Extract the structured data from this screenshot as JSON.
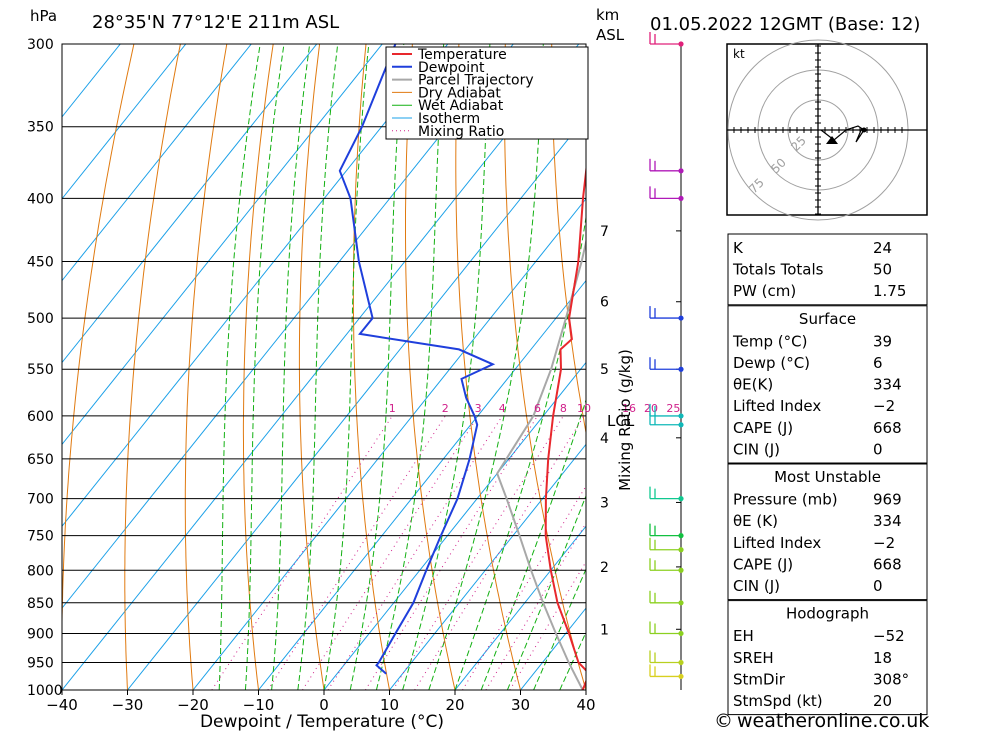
{
  "header": {
    "hpa_label": "hPa",
    "location": "28°35'N  77°12'E  211m  ASL",
    "km_label": "km",
    "asl_label": "ASL",
    "datetime": "01.05.2022  12GMT  (Base: 12)"
  },
  "xaxis": {
    "label": "Dewpoint / Temperature (°C)",
    "ticks": [
      "−40",
      "−30",
      "−20",
      "−10",
      "0",
      "10",
      "20",
      "30",
      "40"
    ],
    "values": [
      -40,
      -30,
      -20,
      -10,
      0,
      10,
      20,
      30,
      40
    ]
  },
  "mixing_ratio_label": "Mixing Ratio (g/kg)",
  "lcl_label": "LCL",
  "pressure_ticks": [
    300,
    350,
    400,
    450,
    500,
    550,
    600,
    650,
    700,
    750,
    800,
    850,
    900,
    950,
    1000
  ],
  "km_ticks": [
    {
      "km": "1",
      "p": 893
    },
    {
      "km": "2",
      "p": 795
    },
    {
      "km": "3",
      "p": 705
    },
    {
      "km": "4",
      "p": 625
    },
    {
      "km": "5",
      "p": 550
    },
    {
      "km": "6",
      "p": 485
    },
    {
      "km": "7",
      "p": 425
    }
  ],
  "mixing_ratio_values": [
    "1",
    "2",
    "3",
    "4",
    "6",
    "8",
    "10",
    "16",
    "20",
    "25"
  ],
  "colors": {
    "temperature": "#e8282d",
    "dewpoint": "#1f3fdc",
    "parcel": "#a8a8a8",
    "dry_adiabat": "#e07a10",
    "wet_adiabat": "#12b012",
    "isotherm": "#1aa0e8",
    "mixing_ratio": "#d0208a"
  },
  "legend": [
    {
      "label": "Temperature",
      "key": "temperature",
      "style": "solid"
    },
    {
      "label": "Dewpoint",
      "key": "dewpoint",
      "style": "solid"
    },
    {
      "label": "Parcel Trajectory",
      "key": "parcel",
      "style": "solid"
    },
    {
      "label": "Dry Adiabat",
      "key": "dry_adiabat",
      "style": "solid"
    },
    {
      "label": "Wet Adiabat",
      "key": "wet_adiabat",
      "style": "solid"
    },
    {
      "label": "Isotherm",
      "key": "isotherm",
      "style": "solid"
    },
    {
      "label": "Mixing Ratio",
      "key": "mixing_ratio",
      "style": "dotted"
    }
  ],
  "chart_data": {
    "type": "line",
    "xlabel": "Dewpoint / Temperature (°C)",
    "ylabel": "hPa",
    "xlim": [
      -40,
      40
    ],
    "ylim": [
      1000,
      300
    ],
    "series": [
      {
        "name": "Temperature",
        "key": "temperature",
        "points": [
          {
            "p": 1000,
            "t": 39.5
          },
          {
            "p": 970,
            "t": 38.5
          },
          {
            "p": 950,
            "t": 35.5
          },
          {
            "p": 900,
            "t": 30.5
          },
          {
            "p": 850,
            "t": 25
          },
          {
            "p": 800,
            "t": 20
          },
          {
            "p": 750,
            "t": 15
          },
          {
            "p": 700,
            "t": 10.5
          },
          {
            "p": 650,
            "t": 6
          },
          {
            "p": 600,
            "t": 1.5
          },
          {
            "p": 550,
            "t": -3
          },
          {
            "p": 530,
            "t": -5.5
          },
          {
            "p": 520,
            "t": -5
          },
          {
            "p": 500,
            "t": -8
          },
          {
            "p": 450,
            "t": -13.5
          },
          {
            "p": 400,
            "t": -20.5
          },
          {
            "p": 350,
            "t": -28
          },
          {
            "p": 300,
            "t": -37
          }
        ]
      },
      {
        "name": "Dewpoint",
        "key": "dewpoint",
        "points": [
          {
            "p": 970,
            "t": 7.5
          },
          {
            "p": 955,
            "t": 5
          },
          {
            "p": 950,
            "t": 5
          },
          {
            "p": 900,
            "t": 4
          },
          {
            "p": 850,
            "t": 3
          },
          {
            "p": 800,
            "t": 1
          },
          {
            "p": 750,
            "t": -1
          },
          {
            "p": 700,
            "t": -3
          },
          {
            "p": 650,
            "t": -6
          },
          {
            "p": 610,
            "t": -9
          },
          {
            "p": 600,
            "t": -10.5
          },
          {
            "p": 580,
            "t": -14
          },
          {
            "p": 560,
            "t": -17
          },
          {
            "p": 545,
            "t": -14
          },
          {
            "p": 530,
            "t": -21
          },
          {
            "p": 515,
            "t": -38
          },
          {
            "p": 500,
            "t": -38
          },
          {
            "p": 450,
            "t": -47
          },
          {
            "p": 400,
            "t": -56
          },
          {
            "p": 380,
            "t": -61
          },
          {
            "p": 350,
            "t": -63
          },
          {
            "p": 300,
            "t": -68
          }
        ]
      },
      {
        "name": "Parcel Trajectory",
        "key": "parcel",
        "points": [
          {
            "p": 1000,
            "t": 39.5
          },
          {
            "p": 950,
            "t": 34
          },
          {
            "p": 900,
            "t": 28.5
          },
          {
            "p": 850,
            "t": 22.8
          },
          {
            "p": 800,
            "t": 17
          },
          {
            "p": 750,
            "t": 11
          },
          {
            "p": 700,
            "t": 4.5
          },
          {
            "p": 668,
            "t": 0
          },
          {
            "p": 600,
            "t": -1.5
          },
          {
            "p": 550,
            "t": -4.5
          },
          {
            "p": 500,
            "t": -8.5
          },
          {
            "p": 450,
            "t": -13
          },
          {
            "p": 400,
            "t": -18.5
          },
          {
            "p": 350,
            "t": -25
          },
          {
            "p": 300,
            "t": -33
          }
        ]
      }
    ],
    "wind_barbs": [
      {
        "p": 300,
        "color": "#e0207a"
      },
      {
        "p": 380,
        "color": "#b01ab8"
      },
      {
        "p": 400,
        "color": "#b01ab8"
      },
      {
        "p": 500,
        "color": "#1f3fdc"
      },
      {
        "p": 550,
        "color": "#1f3fdc"
      },
      {
        "p": 600,
        "color": "#10b8b8"
      },
      {
        "p": 610,
        "color": "#10b8b8"
      },
      {
        "p": 700,
        "color": "#10c890"
      },
      {
        "p": 750,
        "color": "#12c040"
      },
      {
        "p": 770,
        "color": "#8cd020"
      },
      {
        "p": 800,
        "color": "#8cd020"
      },
      {
        "p": 850,
        "color": "#8cd020"
      },
      {
        "p": 900,
        "color": "#8cd020"
      },
      {
        "p": 950,
        "color": "#b8d020"
      },
      {
        "p": 975,
        "color": "#d8d020"
      }
    ]
  },
  "hodograph": {
    "unit": "kt",
    "ring_labels": [
      "25",
      "50",
      "75"
    ]
  },
  "indices": [
    {
      "label": "K",
      "value": "24"
    },
    {
      "label": "Totals Totals",
      "value": "50"
    },
    {
      "label": "PW (cm)",
      "value": "1.75"
    }
  ],
  "surface": {
    "title": "Surface",
    "rows": [
      {
        "label": "Temp (°C)",
        "value": "39"
      },
      {
        "label": "Dewp (°C)",
        "value": "6"
      },
      {
        "label": "θE(K)",
        "value": "334"
      },
      {
        "label": "Lifted Index",
        "value": "−2"
      },
      {
        "label": "CAPE (J)",
        "value": "668"
      },
      {
        "label": "CIN (J)",
        "value": "0"
      }
    ]
  },
  "most_unstable": {
    "title": "Most Unstable",
    "rows": [
      {
        "label": "Pressure (mb)",
        "value": "969"
      },
      {
        "label": "θE (K)",
        "value": "334"
      },
      {
        "label": "Lifted Index",
        "value": "−2"
      },
      {
        "label": "CAPE (J)",
        "value": "668"
      },
      {
        "label": "CIN (J)",
        "value": "0"
      }
    ]
  },
  "hodograph_table": {
    "title": "Hodograph",
    "rows": [
      {
        "label": "EH",
        "value": "−52"
      },
      {
        "label": "SREH",
        "value": "18"
      },
      {
        "label": "StmDir",
        "value": "308°"
      },
      {
        "label": "StmSpd (kt)",
        "value": "20"
      }
    ]
  },
  "footer": {
    "copyright_symbol": "©",
    "site": "weatheronline.co.uk"
  }
}
